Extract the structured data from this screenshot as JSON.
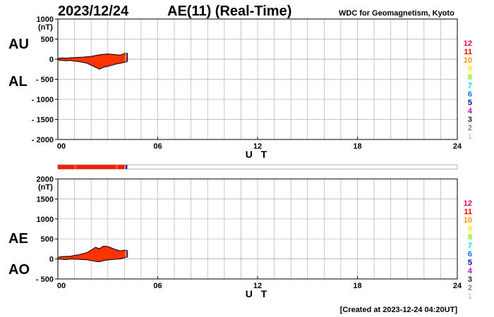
{
  "header": {
    "date": "2023/12/24",
    "title": "AE(11) (Real-Time)",
    "source": "WDC for Geomagnetism, Kyoto"
  },
  "footer": {
    "created": "[Created at 2023-12-24 04:20UT]"
  },
  "colors": {
    "fill": "#ff3300",
    "fill_alt": "#dd2200",
    "grid": "#b0b0b0",
    "frame": "#000000"
  },
  "panels": {
    "top": {
      "label_upper": "AU",
      "label_lower": "AL",
      "unit": "(nT)",
      "y_ticks": [
        "1000",
        "500",
        "0",
        "- 500",
        "- 1000",
        "- 1500",
        "- 2000"
      ],
      "y_tick_values": [
        1000,
        500,
        0,
        -500,
        -1000,
        -1500,
        -2000
      ],
      "x_ticks": [
        "00",
        "06",
        "12",
        "18",
        "24"
      ],
      "xlabel": "U T"
    },
    "bottom": {
      "label_upper": "AE",
      "label_lower": "AO",
      "unit": "(nT)",
      "y_ticks": [
        "2000",
        "1500",
        "1000",
        "500",
        "0",
        "- 500"
      ],
      "y_tick_values": [
        2000,
        1500,
        1000,
        500,
        0,
        -500
      ],
      "x_ticks": [
        "00",
        "06",
        "12",
        "18",
        "24"
      ],
      "xlabel": "U T"
    }
  },
  "level_legend": [
    {
      "label": "12",
      "color": "#e8006a"
    },
    {
      "label": "11",
      "color": "#ff0000"
    },
    {
      "label": "10",
      "color": "#ff9900"
    },
    {
      "label": "9",
      "color": "#ffee00"
    },
    {
      "label": "8",
      "color": "#88ee00"
    },
    {
      "label": "7",
      "color": "#00dddd"
    },
    {
      "label": "6",
      "color": "#0077ff"
    },
    {
      "label": "5",
      "color": "#0000cc"
    },
    {
      "label": "4",
      "color": "#cc00cc"
    },
    {
      "label": "3",
      "color": "#222222"
    },
    {
      "label": "2",
      "color": "#888888"
    },
    {
      "label": "1",
      "color": "#cccccc"
    }
  ],
  "chart_data": [
    {
      "type": "area",
      "title": "AE(11) (Real-Time)",
      "xlabel": "U T",
      "ylabel": "(nT)",
      "xlim": [
        0,
        24
      ],
      "ylim": [
        -2000,
        1000
      ],
      "grid": true,
      "series": [
        {
          "name": "AU",
          "x": [
            0.0,
            0.25,
            0.5,
            0.75,
            1.0,
            1.25,
            1.5,
            1.75,
            2.0,
            2.25,
            2.5,
            2.75,
            3.0,
            3.25,
            3.5,
            3.75,
            4.0,
            4.17
          ],
          "values": [
            20,
            30,
            25,
            35,
            40,
            45,
            50,
            60,
            70,
            90,
            110,
            120,
            130,
            120,
            110,
            100,
            140,
            150
          ]
        },
        {
          "name": "AL",
          "x": [
            0.0,
            0.25,
            0.5,
            0.75,
            1.0,
            1.25,
            1.5,
            1.75,
            2.0,
            2.25,
            2.5,
            2.75,
            3.0,
            3.25,
            3.5,
            3.75,
            4.0,
            4.17
          ],
          "values": [
            -20,
            -30,
            -40,
            -30,
            -50,
            -60,
            -80,
            -100,
            -150,
            -200,
            -250,
            -200,
            -180,
            -150,
            -120,
            -100,
            -80,
            -60
          ]
        }
      ]
    },
    {
      "type": "area",
      "xlabel": "U T",
      "ylabel": "(nT)",
      "xlim": [
        0,
        24
      ],
      "ylim": [
        -500,
        2000
      ],
      "grid": true,
      "series": [
        {
          "name": "AE",
          "x": [
            0.0,
            0.25,
            0.5,
            0.75,
            1.0,
            1.25,
            1.5,
            1.75,
            2.0,
            2.25,
            2.5,
            2.75,
            3.0,
            3.25,
            3.5,
            3.75,
            4.0,
            4.17
          ],
          "values": [
            40,
            60,
            65,
            65,
            90,
            105,
            130,
            160,
            220,
            290,
            260,
            320,
            310,
            270,
            230,
            200,
            220,
            210
          ]
        },
        {
          "name": "AO",
          "x": [
            0.0,
            0.25,
            0.5,
            0.75,
            1.0,
            1.25,
            1.5,
            1.75,
            2.0,
            2.25,
            2.5,
            2.75,
            3.0,
            3.25,
            3.5,
            3.75,
            4.0,
            4.17
          ],
          "values": [
            0,
            -10,
            -15,
            0,
            -5,
            -10,
            -15,
            -20,
            -40,
            -60,
            -70,
            -40,
            -25,
            -15,
            -5,
            0,
            30,
            45
          ]
        }
      ]
    }
  ],
  "activity_bar": {
    "segments": [
      {
        "start": 0.0,
        "end": 1.0,
        "color": "#ee2200"
      },
      {
        "start": 1.0,
        "end": 1.1,
        "color": "#ff5522"
      },
      {
        "start": 1.1,
        "end": 3.5,
        "color": "#ee2200"
      },
      {
        "start": 3.5,
        "end": 3.6,
        "color": "#ff5522"
      },
      {
        "start": 3.6,
        "end": 4.0,
        "color": "#ee2200"
      },
      {
        "start": 4.0,
        "end": 4.08,
        "color": "#ff9900"
      },
      {
        "start": 4.08,
        "end": 4.17,
        "color": "#0000cc"
      }
    ]
  }
}
